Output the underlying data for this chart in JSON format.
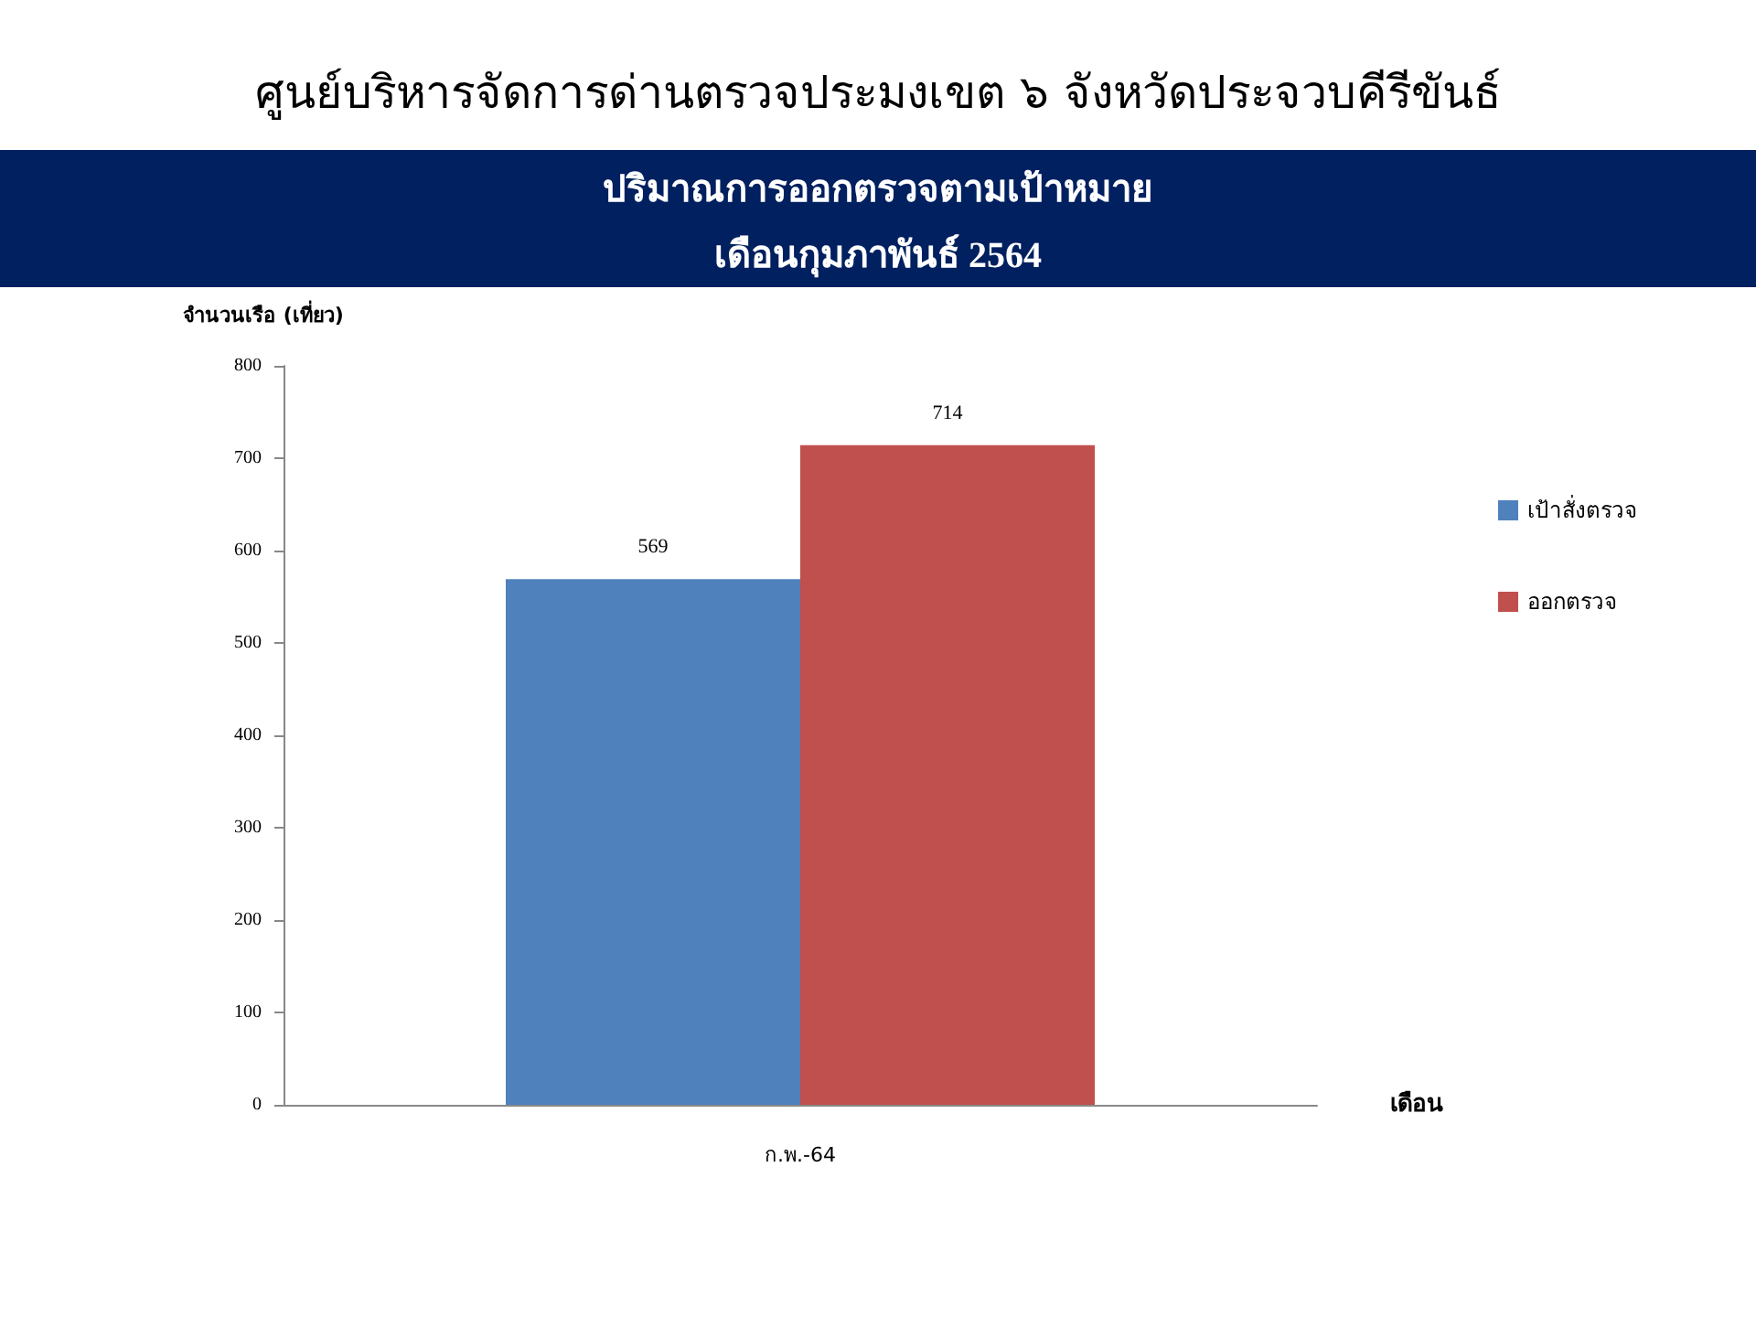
{
  "chart_data": {
    "type": "bar",
    "title": "ศูนย์บริหารจัดการด่านตรวจประมงเขต ๖ จังหวัดประจวบคีรีขันธ์",
    "subtitle": "ปริมาณการออกตรวจตามเป้าหมาย\nเดือนกุมภาพันธ์ 2564",
    "xlabel": "เดือน",
    "ylabel": "จำนวนเรือ (เที่ยว)",
    "categories": [
      "ก.พ.-64"
    ],
    "series": [
      {
        "name": "เป้าสั่งตรวจ",
        "color": "#4f81bd",
        "values": [
          569
        ]
      },
      {
        "name": "ออกตรวจ",
        "color": "#c0504d",
        "values": [
          714
        ]
      }
    ],
    "ylim": [
      0,
      800
    ],
    "yticks": [
      0,
      100,
      200,
      300,
      400,
      500,
      600,
      700,
      800
    ],
    "grid": false,
    "legend": "right",
    "data_labels": true
  }
}
